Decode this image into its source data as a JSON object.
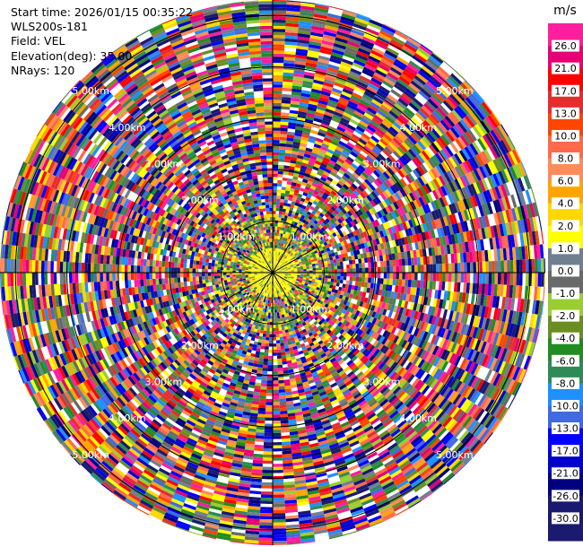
{
  "header": {
    "start_time": "Start time: 2026/01/15 00:35:22",
    "instrument": "WLS200s-181",
    "field": "Field: VEL",
    "elevation": "Elevation(deg): 35.00",
    "nrays": "NRays: 120"
  },
  "chart_data": {
    "type": "heatmap",
    "projection": "polar-ppi",
    "field": "VEL",
    "units": "m/s",
    "n_rays": 120,
    "max_range_km": 5.3,
    "range_ring_labels": [
      {
        "label": "1.00km",
        "range_km": 1.0
      },
      {
        "label": "2.00km",
        "range_km": 2.0
      },
      {
        "label": "3.00km",
        "range_km": 3.0
      },
      {
        "label": "4.00km",
        "range_km": 4.0
      },
      {
        "label": "5.00km",
        "range_km": 5.0
      }
    ],
    "colorbar": {
      "unit": "m/s",
      "ticks": [
        "26.0",
        "21.0",
        "17.0",
        "13.0",
        "10.0",
        "8.0",
        "6.0",
        "4.0",
        "2.0",
        "1.0",
        "0.0",
        "-1.0",
        "-2.0",
        "-4.0",
        "-6.0",
        "-8.0",
        "-10.0",
        "-13.0",
        "-17.0",
        "-21.0",
        "-26.0",
        "-30.0"
      ],
      "colors": [
        "#ff1e9e",
        "#e60073",
        "#ff0000",
        "#e62d2d",
        "#ff4500",
        "#ff6a4a",
        "#ff8c5a",
        "#ffa500",
        "#ffd700",
        "#ffff00",
        "#708090",
        "#696969",
        "#9acd32",
        "#6b8e23",
        "#228b22",
        "#2e8b57",
        "#1e90ff",
        "#4169e1",
        "#0000ff",
        "#0000cd",
        "#000080",
        "#191970",
        "#1a1a6e"
      ]
    },
    "near_field_colors": [
      "#ffff00",
      "#ffd700",
      "#9acd32",
      "#6b8e23",
      "#228b22",
      "#708090"
    ]
  }
}
